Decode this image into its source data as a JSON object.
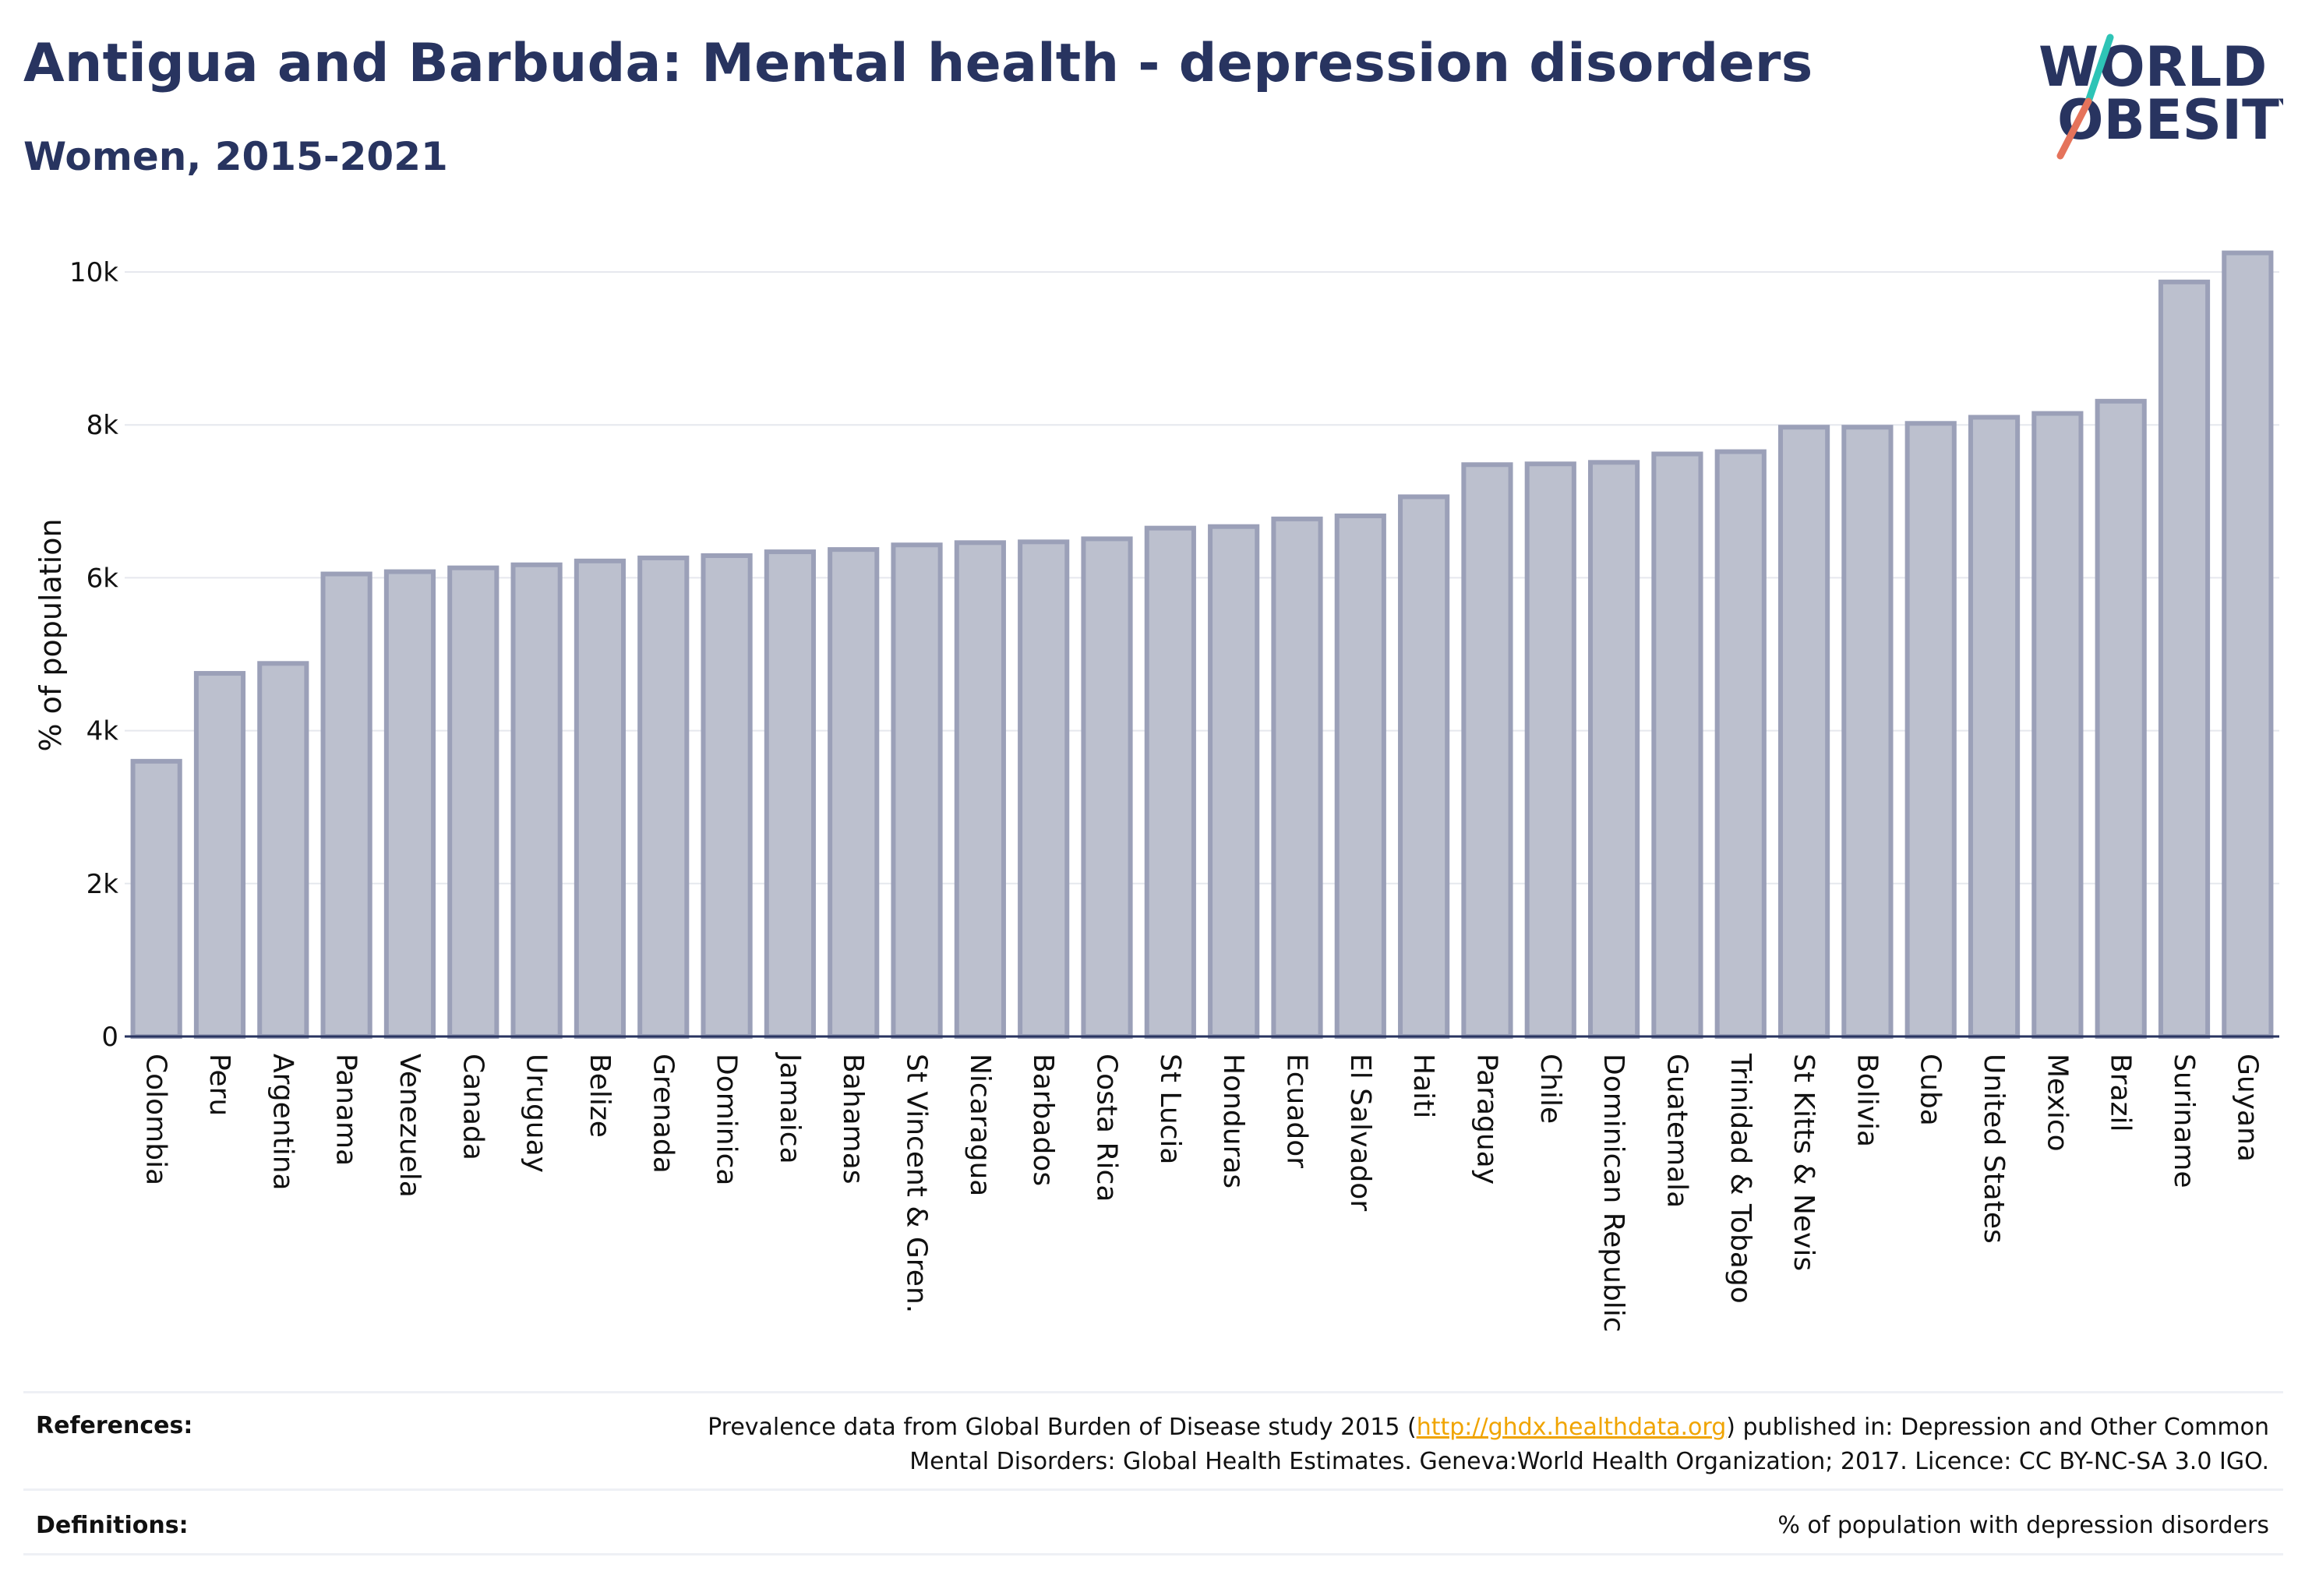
{
  "header": {
    "title": "Antigua and Barbuda: Mental health - depression disorders",
    "subtitle": "Women, 2015-2021"
  },
  "logo": {
    "line1": "WORLD",
    "line2": "OBESITY",
    "text_color": "#283460",
    "slash_top_color": "#2ec4b6",
    "slash_bottom_color": "#e5735b"
  },
  "chart_data": {
    "type": "bar",
    "title": "",
    "xlabel": "",
    "ylabel": "% of population",
    "ylim": [
      0,
      10500
    ],
    "yticks": [
      0,
      2000,
      4000,
      6000,
      8000,
      10000
    ],
    "ytick_labels": [
      "0",
      "2k",
      "4k",
      "6k",
      "8k",
      "10k"
    ],
    "grid": true,
    "bar_fill": "#bcc0ce",
    "bar_stroke": "#9ba0b8",
    "categories": [
      "Colombia",
      "Peru",
      "Argentina",
      "Panama",
      "Venezuela",
      "Canada",
      "Uruguay",
      "Belize",
      "Grenada",
      "Dominica",
      "Jamaica",
      "Bahamas",
      "St Vincent & Gren.",
      "Nicaragua",
      "Barbados",
      "Costa Rica",
      "St Lucia",
      "Honduras",
      "Ecuador",
      "El Salvador",
      "Haiti",
      "Paraguay",
      "Chile",
      "Dominican Republic",
      "Guatemala",
      "Trinidad & Tobago",
      "St Kitts & Nevis",
      "Bolivia",
      "Cuba",
      "United States",
      "Mexico",
      "Brazil",
      "Suriname",
      "Guyana"
    ],
    "values": [
      3600,
      4750,
      4880,
      6050,
      6080,
      6130,
      6170,
      6220,
      6260,
      6290,
      6340,
      6370,
      6430,
      6460,
      6470,
      6510,
      6650,
      6670,
      6770,
      6810,
      7060,
      7480,
      7490,
      7510,
      7620,
      7650,
      7970,
      7970,
      8020,
      8100,
      8150,
      8310,
      9870,
      10250
    ]
  },
  "footer": {
    "references_label": "References:",
    "references_text_before": "Prevalence data from Global Burden of Disease study 2015 (",
    "references_link": "http://ghdx.healthdata.org",
    "references_text_after_line1": ") published in: Depression and Other Common",
    "references_text_line2": "Mental Disorders: Global Health Estimates. Geneva:World Health Organization; 2017. Licence: CC BY-NC-SA 3.0 IGO.",
    "definitions_label": "Definitions:",
    "definitions_text": "% of population with depression disorders"
  }
}
